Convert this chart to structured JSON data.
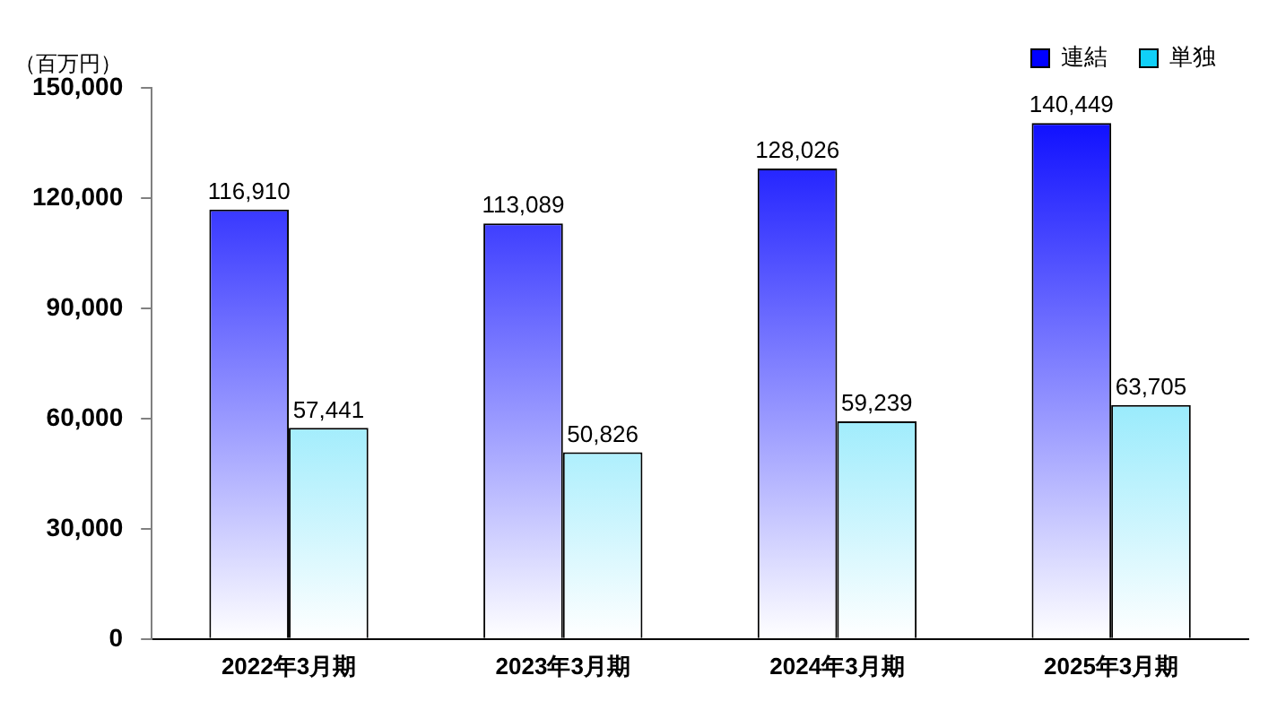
{
  "chart_data": {
    "type": "bar",
    "ylabel": "（百万円）",
    "categories": [
      "2022年3月期",
      "2023年3月期",
      "2024年3月期",
      "2025年3月期"
    ],
    "series": [
      {
        "name": "連結",
        "color": "#0000ff",
        "values": [
          116910,
          113089,
          128026,
          140449
        ],
        "value_labels": [
          "116,910",
          "113,089",
          "128,026",
          "140,449"
        ]
      },
      {
        "name": "単独",
        "color": "#10d0f8",
        "values": [
          57441,
          50826,
          59239,
          63705
        ],
        "value_labels": [
          "57,441",
          "50,826",
          "59,239",
          "63,705"
        ]
      }
    ],
    "ylim": [
      0,
      150000
    ],
    "yticks": [
      {
        "value": 0,
        "label": "0"
      },
      {
        "value": 30000,
        "label": "30,000"
      },
      {
        "value": 60000,
        "label": "60,000"
      },
      {
        "value": 90000,
        "label": "90,000"
      },
      {
        "value": 120000,
        "label": "120,000"
      },
      {
        "value": 150000,
        "label": "150,000"
      }
    ],
    "grid": false,
    "legend": "top right"
  }
}
